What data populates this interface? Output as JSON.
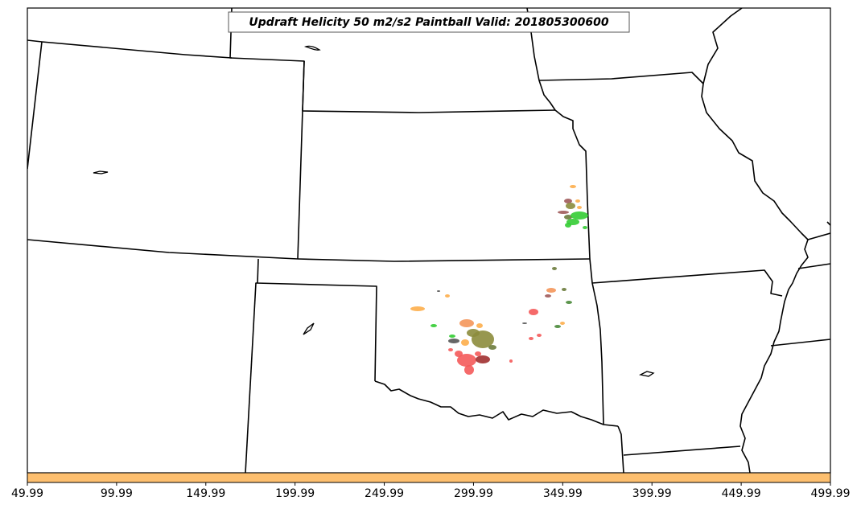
{
  "title": "Updraft Helicity 50 m2/s2 Paintball Valid: 201805300600",
  "colorbar": {
    "color": "#fdbf6f",
    "ticks": [
      "49.99",
      "99.99",
      "149.99",
      "199.99",
      "249.99",
      "299.99",
      "349.99",
      "399.99",
      "449.99",
      "499.99"
    ]
  },
  "paint_colors": {
    "red": "#f45a5a",
    "salmon": "#f4965a",
    "orange": "#fdae4b",
    "olive": "#8c8c3c",
    "dark_olive": "#6b7b3c",
    "green": "#33cc33",
    "dark_green": "#4a8a3a",
    "dark_red": "#a03030",
    "mauve": "#a05a5a",
    "gray": "#555555"
  }
}
